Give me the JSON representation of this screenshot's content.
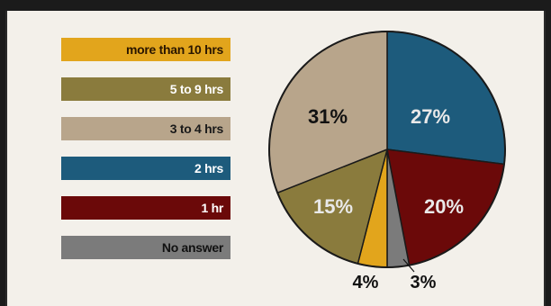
{
  "chart_data": {
    "type": "pie",
    "title": "",
    "legend_position": "left",
    "slices": [
      {
        "label": "2 hrs",
        "value": 27,
        "display": "27%",
        "color": "#1d5b7c",
        "label_color": "#e9e9e9"
      },
      {
        "label": "1 hr",
        "value": 20,
        "display": "20%",
        "color": "#6b0909",
        "label_color": "#e9e9e9"
      },
      {
        "label": "No answer",
        "value": 3,
        "display": "3%",
        "color": "#7b7b7b",
        "label_color": "#111111"
      },
      {
        "label": "more than 10 hrs",
        "value": 4,
        "display": "4%",
        "color": "#e2a51c",
        "label_color": "#111111"
      },
      {
        "label": "5 to 9 hrs",
        "value": 15,
        "display": "15%",
        "color": "#8a7b3d",
        "label_color": "#e9e9e9"
      },
      {
        "label": "3 to 4 hrs",
        "value": 31,
        "display": "31%",
        "color": "#b8a58b",
        "label_color": "#111111"
      }
    ]
  },
  "legend": [
    {
      "label": "more than 10 hrs",
      "color": "#e2a51c",
      "text_color": "#2a1600"
    },
    {
      "label": "5 to 9 hrs",
      "color": "#8a7b3d",
      "text_color": "#ffffff"
    },
    {
      "label": "3 to 4 hrs",
      "color": "#b8a58b",
      "text_color": "#1a1a1a"
    },
    {
      "label": "2 hrs",
      "color": "#1d5b7c",
      "text_color": "#ffffff"
    },
    {
      "label": "1 hr",
      "color": "#6b0909",
      "text_color": "#ffffff"
    },
    {
      "label": "No answer",
      "color": "#7b7b7b",
      "text_color": "#111111"
    }
  ]
}
